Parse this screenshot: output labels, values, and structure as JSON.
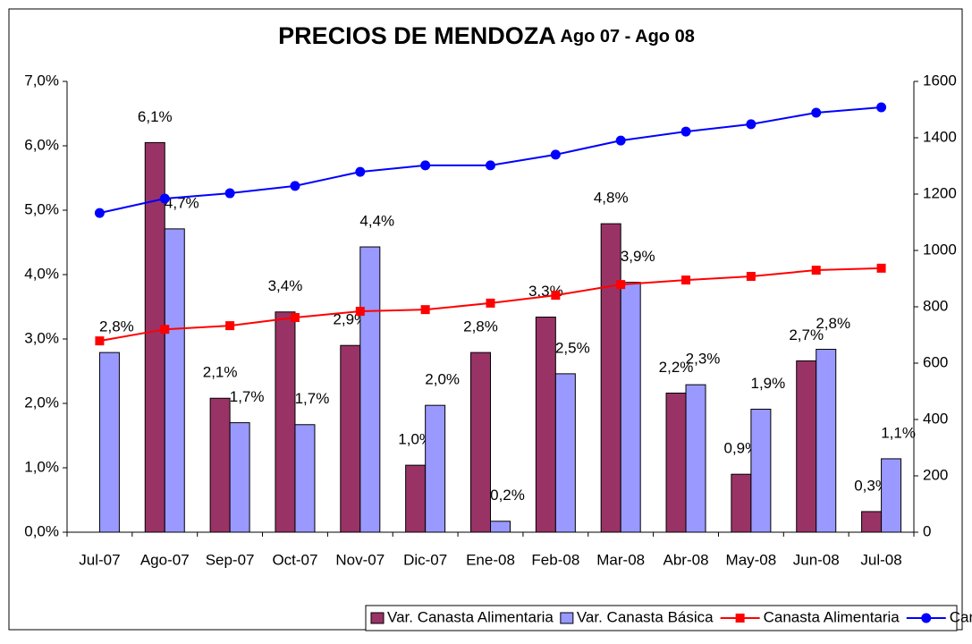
{
  "chart_data": {
    "type": "bar",
    "title": "PRECIOS DE MENDOZA",
    "subtitle": "Ago 07 - Ago 08",
    "categories": [
      "Jul-07",
      "Ago-07",
      "Sep-07",
      "Oct-07",
      "Nov-07",
      "Dic-07",
      "Ene-08",
      "Feb-08",
      "Mar-08",
      "Abr-08",
      "May-08",
      "Jun-08",
      "Jul-08"
    ],
    "series": [
      {
        "name": "Var. Canasta Alimentaria",
        "type": "bar",
        "color": "#993366",
        "values": [
          null,
          6.05,
          2.08,
          3.42,
          2.9,
          1.04,
          2.79,
          3.34,
          4.79,
          2.16,
          0.9,
          2.66,
          0.32
        ],
        "value_labels": [
          null,
          "6,1%",
          "2,1%",
          "3,4%",
          "2,9%",
          "1,0%",
          "2,8%",
          "3,3%",
          "4,8%",
          "2,2%",
          "0,9%",
          "2,7%",
          "0,3%"
        ]
      },
      {
        "name": "Var. Canasta Básica",
        "type": "bar",
        "color": "#9999ff",
        "values": [
          2.79,
          4.71,
          1.7,
          1.67,
          4.43,
          1.97,
          0.17,
          2.46,
          3.88,
          2.29,
          1.91,
          2.84,
          1.14
        ],
        "value_labels": [
          "2,8%",
          "4,7%",
          "1,7%",
          "1,7%",
          "4,4%",
          "2,0%",
          "0,2%",
          "2,5%",
          "3,9%",
          "2,3%",
          "1,9%",
          "2,8%",
          "1,1%"
        ]
      },
      {
        "name": "Canasta Alimentaria",
        "type": "line",
        "axis": "y2",
        "color": "#ff0000",
        "marker": "square",
        "values": [
          679,
          720,
          733,
          762,
          784,
          790,
          813,
          841,
          879,
          895,
          908,
          930,
          937
        ]
      },
      {
        "name": "Canasta Básica",
        "type": "line",
        "axis": "y2",
        "color": "#0000ff",
        "marker": "circle",
        "values": [
          1133,
          1184,
          1203,
          1229,
          1279,
          1302,
          1302,
          1340,
          1390,
          1422,
          1448,
          1489,
          1508
        ]
      }
    ],
    "ylim": [
      0,
      7
    ],
    "yticks": [
      {
        "value": 0,
        "label": "0,0%"
      },
      {
        "value": 1,
        "label": "1,0%"
      },
      {
        "value": 2,
        "label": "2,0%"
      },
      {
        "value": 3,
        "label": "3,0%"
      },
      {
        "value": 4,
        "label": "4,0%"
      },
      {
        "value": 5,
        "label": "5,0%"
      },
      {
        "value": 6,
        "label": "6,0%"
      },
      {
        "value": 7,
        "label": "7,0%"
      }
    ],
    "y2lim": [
      0,
      1600
    ],
    "y2ticks": [
      0,
      200,
      400,
      600,
      800,
      1000,
      1200,
      1400,
      1600
    ],
    "legend": "bottom"
  }
}
